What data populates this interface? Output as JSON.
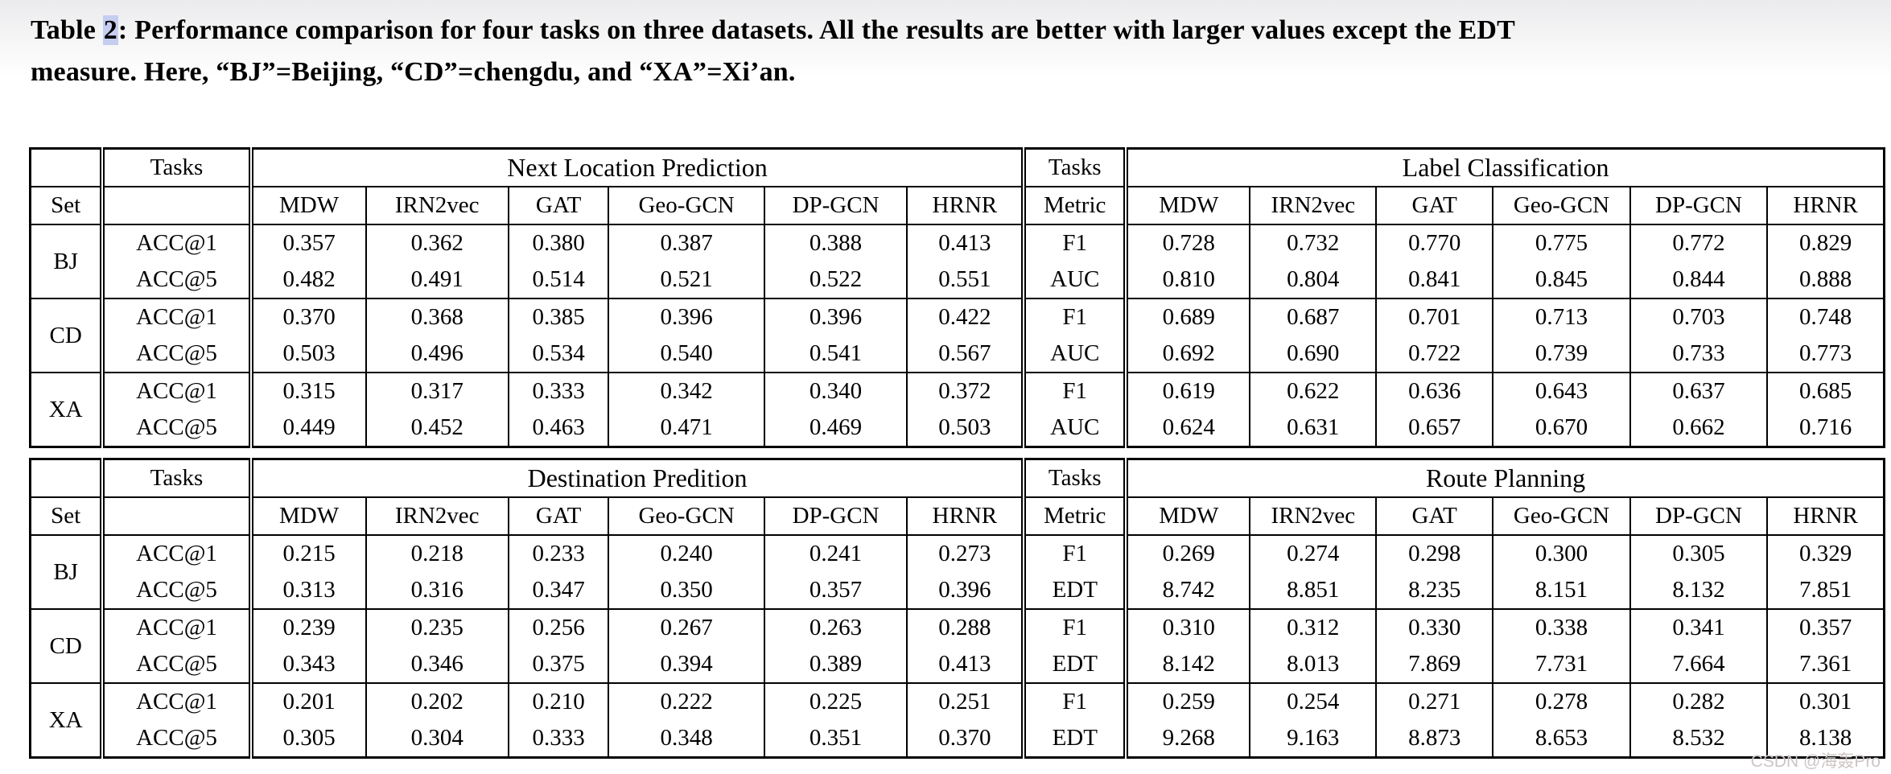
{
  "caption": {
    "word": "Table ",
    "number": "2",
    "line1_rest": ": Performance comparison for four tasks on three datasets. All the results are better with larger values except the EDT",
    "line2": "measure. Here, “BJ”=Beijing, “CD”=chengdu, and “XA”=Xi’an."
  },
  "colors": {
    "highlight": "#c5cdf0",
    "watermark": "#cdc5c5",
    "text": "#000000"
  },
  "models": [
    "MDW",
    "IRN2vec",
    "GAT",
    "Geo-GCN",
    "DP-GCN",
    "HRNR"
  ],
  "tables": [
    {
      "set_header": "Set",
      "tasks_header": "Tasks",
      "metric_header": "Metric",
      "left_title": "Next Location Prediction",
      "right_title": "Label Classification",
      "groups": [
        {
          "set": "BJ",
          "rows": [
            {
              "left_metric": "ACC@1",
              "left_values": [
                "0.357",
                "0.362",
                "0.380",
                "0.387",
                "0.388",
                "0.413"
              ],
              "right_metric": "F1",
              "right_values": [
                "0.728",
                "0.732",
                "0.770",
                "0.775",
                "0.772",
                "0.829"
              ]
            },
            {
              "left_metric": "ACC@5",
              "left_values": [
                "0.482",
                "0.491",
                "0.514",
                "0.521",
                "0.522",
                "0.551"
              ],
              "right_metric": "AUC",
              "right_values": [
                "0.810",
                "0.804",
                "0.841",
                "0.845",
                "0.844",
                "0.888"
              ]
            }
          ]
        },
        {
          "set": "CD",
          "rows": [
            {
              "left_metric": "ACC@1",
              "left_values": [
                "0.370",
                "0.368",
                "0.385",
                "0.396",
                "0.396",
                "0.422"
              ],
              "right_metric": "F1",
              "right_values": [
                "0.689",
                "0.687",
                "0.701",
                "0.713",
                "0.703",
                "0.748"
              ]
            },
            {
              "left_metric": "ACC@5",
              "left_values": [
                "0.503",
                "0.496",
                "0.534",
                "0.540",
                "0.541",
                "0.567"
              ],
              "right_metric": "AUC",
              "right_values": [
                "0.692",
                "0.690",
                "0.722",
                "0.739",
                "0.733",
                "0.773"
              ]
            }
          ]
        },
        {
          "set": "XA",
          "rows": [
            {
              "left_metric": "ACC@1",
              "left_values": [
                "0.315",
                "0.317",
                "0.333",
                "0.342",
                "0.340",
                "0.372"
              ],
              "right_metric": "F1",
              "right_values": [
                "0.619",
                "0.622",
                "0.636",
                "0.643",
                "0.637",
                "0.685"
              ]
            },
            {
              "left_metric": "ACC@5",
              "left_values": [
                "0.449",
                "0.452",
                "0.463",
                "0.471",
                "0.469",
                "0.503"
              ],
              "right_metric": "AUC",
              "right_values": [
                "0.624",
                "0.631",
                "0.657",
                "0.670",
                "0.662",
                "0.716"
              ]
            }
          ]
        }
      ]
    },
    {
      "set_header": "Set",
      "tasks_header": "Tasks",
      "metric_header": "Metric",
      "left_title": "Destination Predition",
      "right_title": "Route Planning",
      "groups": [
        {
          "set": "BJ",
          "rows": [
            {
              "left_metric": "ACC@1",
              "left_values": [
                "0.215",
                "0.218",
                "0.233",
                "0.240",
                "0.241",
                "0.273"
              ],
              "right_metric": "F1",
              "right_values": [
                "0.269",
                "0.274",
                "0.298",
                "0.300",
                "0.305",
                "0.329"
              ]
            },
            {
              "left_metric": "ACC@5",
              "left_values": [
                "0.313",
                "0.316",
                "0.347",
                "0.350",
                "0.357",
                "0.396"
              ],
              "right_metric": "EDT",
              "right_values": [
                "8.742",
                "8.851",
                "8.235",
                "8.151",
                "8.132",
                "7.851"
              ]
            }
          ]
        },
        {
          "set": "CD",
          "rows": [
            {
              "left_metric": "ACC@1",
              "left_values": [
                "0.239",
                "0.235",
                "0.256",
                "0.267",
                "0.263",
                "0.288"
              ],
              "right_metric": "F1",
              "right_values": [
                "0.310",
                "0.312",
                "0.330",
                "0.338",
                "0.341",
                "0.357"
              ]
            },
            {
              "left_metric": "ACC@5",
              "left_values": [
                "0.343",
                "0.346",
                "0.375",
                "0.394",
                "0.389",
                "0.413"
              ],
              "right_metric": "EDT",
              "right_values": [
                "8.142",
                "8.013",
                "7.869",
                "7.731",
                "7.664",
                "7.361"
              ]
            }
          ]
        },
        {
          "set": "XA",
          "rows": [
            {
              "left_metric": "ACC@1",
              "left_values": [
                "0.201",
                "0.202",
                "0.210",
                "0.222",
                "0.225",
                "0.251"
              ],
              "right_metric": "F1",
              "right_values": [
                "0.259",
                "0.254",
                "0.271",
                "0.278",
                "0.282",
                "0.301"
              ]
            },
            {
              "left_metric": "ACC@5",
              "left_values": [
                "0.305",
                "0.304",
                "0.333",
                "0.348",
                "0.351",
                "0.370"
              ],
              "right_metric": "EDT",
              "right_values": [
                "9.268",
                "9.163",
                "8.873",
                "8.653",
                "8.532",
                "8.138"
              ]
            }
          ]
        }
      ]
    }
  ],
  "watermark": "CSDN @海轰Pro"
}
